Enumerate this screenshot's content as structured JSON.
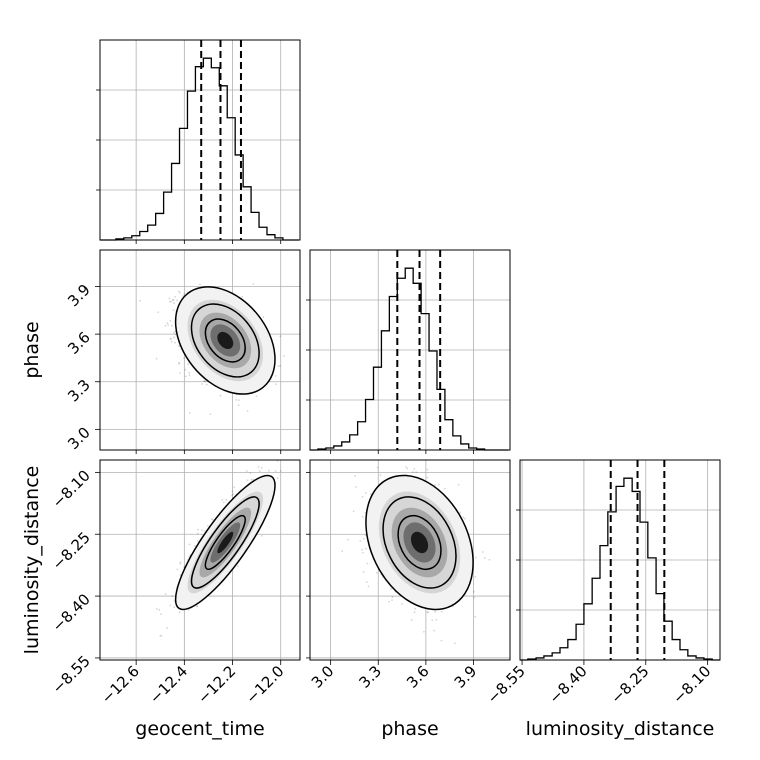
{
  "chart_data": {
    "type": "corner",
    "parameters": [
      "geocent_time",
      "phase",
      "luminosity_distance"
    ],
    "axis_labels": {
      "x": [
        "geocent_time",
        "phase",
        "luminosity_distance"
      ],
      "y": [
        "phase",
        "luminosity_distance"
      ]
    },
    "ranges": {
      "geocent_time": [
        -12.75,
        -11.92
      ],
      "phase": [
        2.87,
        4.13
      ],
      "luminosity_distance": [
        -8.555,
        -8.07
      ]
    },
    "ticks": {
      "geocent_time": [
        -12.6,
        -12.4,
        -12.2,
        -12.0
      ],
      "phase": [
        3.0,
        3.3,
        3.6,
        3.9
      ],
      "luminosity_distance": [
        -8.55,
        -8.4,
        -8.25,
        -8.1
      ]
    },
    "tick_labels": {
      "geocent_time": [
        "−12.6",
        "−12.4",
        "−12.2",
        "−12.0"
      ],
      "phase": [
        "3.0",
        "3.3",
        "3.6",
        "3.9"
      ],
      "luminosity_distance": [
        "−8.55",
        "−8.40",
        "−8.25",
        "−8.10"
      ]
    },
    "marginals": {
      "geocent_time": {
        "bins": [
          -12.75,
          -12.717,
          -12.684,
          -12.651,
          -12.618,
          -12.585,
          -12.552,
          -12.519,
          -12.486,
          -12.453,
          -12.42,
          -12.387,
          -12.354,
          -12.321,
          -12.288,
          -12.255,
          -12.222,
          -12.189,
          -12.156,
          -12.123,
          -12.09,
          -12.057,
          -12.024,
          -11.991,
          -11.958,
          -11.925
        ],
        "counts": [
          0,
          0,
          1,
          2,
          4,
          8,
          14,
          25,
          45,
          72,
          105,
          140,
          163,
          171,
          162,
          145,
          115,
          80,
          50,
          26,
          12,
          5,
          2,
          0,
          0
        ],
        "quantiles": [
          -12.33,
          -12.25,
          -12.165
        ]
      },
      "phase": {
        "bins": [
          2.87,
          2.92,
          2.97,
          3.02,
          3.07,
          3.12,
          3.17,
          3.22,
          3.27,
          3.32,
          3.37,
          3.42,
          3.47,
          3.52,
          3.57,
          3.62,
          3.67,
          3.72,
          3.77,
          3.82,
          3.87,
          3.92,
          3.97,
          4.02,
          4.07,
          4.12
        ],
        "counts": [
          0,
          1,
          2,
          4,
          8,
          15,
          28,
          50,
          82,
          118,
          152,
          170,
          180,
          165,
          135,
          98,
          60,
          30,
          14,
          6,
          2,
          1,
          0,
          0,
          0
        ],
        "quantiles": [
          3.42,
          3.56,
          3.69
        ]
      },
      "luminosity_distance": {
        "bins": [
          -8.555,
          -8.536,
          -8.516,
          -8.497,
          -8.477,
          -8.458,
          -8.439,
          -8.419,
          -8.4,
          -8.38,
          -8.361,
          -8.342,
          -8.322,
          -8.303,
          -8.283,
          -8.264,
          -8.245,
          -8.225,
          -8.206,
          -8.186,
          -8.167,
          -8.148,
          -8.128,
          -8.109,
          -8.089,
          -8.07
        ],
        "counts": [
          0,
          1,
          2,
          4,
          7,
          12,
          20,
          35,
          55,
          80,
          112,
          145,
          170,
          178,
          165,
          135,
          100,
          65,
          38,
          20,
          10,
          4,
          2,
          1,
          0
        ],
        "quantiles": [
          -8.335,
          -8.27,
          -8.205
        ]
      }
    },
    "joint": {
      "geocent_time_vs_phase": {
        "correlation": -0.35,
        "mode": [
          -12.23,
          3.56
        ]
      },
      "geocent_time_vs_luminosity_distance": {
        "correlation": 0.85,
        "mode": [
          -12.23,
          -8.27
        ]
      },
      "phase_vs_luminosity_distance": {
        "correlation": -0.3,
        "mode": [
          3.56,
          -8.27
        ]
      }
    },
    "grid": true,
    "contour_levels": 3
  }
}
